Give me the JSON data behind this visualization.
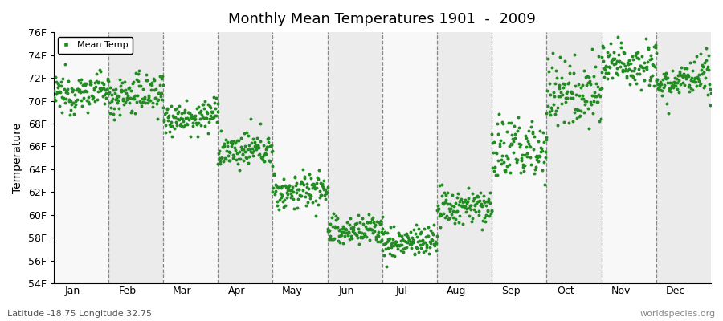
{
  "title": "Monthly Mean Temperatures 1901  -  2009",
  "ylabel": "Temperature",
  "subtitle": "Latitude -18.75 Longitude 32.75",
  "watermark": "worldspecies.org",
  "months": [
    "Jan",
    "Feb",
    "Mar",
    "Apr",
    "May",
    "Jun",
    "Jul",
    "Aug",
    "Sep",
    "Oct",
    "Nov",
    "Dec"
  ],
  "ylim": [
    54,
    76
  ],
  "yticks": [
    54,
    56,
    58,
    60,
    62,
    64,
    66,
    68,
    70,
    72,
    74,
    76
  ],
  "ytick_labels": [
    "54F",
    "56F",
    "58F",
    "60F",
    "62F",
    "64F",
    "66F",
    "68F",
    "70F",
    "72F",
    "74F",
    "76F"
  ],
  "dot_color": "#228B22",
  "dot_size": 8,
  "background_light": "#ebebeb",
  "background_white": "#f8f8f8",
  "legend_label": "Mean Temp",
  "monthly_means": [
    70.5,
    70.3,
    68.5,
    65.5,
    62.0,
    58.5,
    57.5,
    60.5,
    65.5,
    70.5,
    73.0,
    71.5
  ],
  "monthly_stds": [
    0.8,
    0.9,
    0.7,
    0.7,
    0.8,
    0.7,
    0.7,
    0.8,
    1.5,
    1.5,
    1.0,
    0.8
  ],
  "monthly_trends": [
    0.005,
    0.005,
    0.003,
    0.003,
    0.003,
    0.003,
    0.003,
    0.003,
    0.005,
    0.005,
    0.005,
    0.005
  ],
  "n_years": 109,
  "start_year": 1901
}
